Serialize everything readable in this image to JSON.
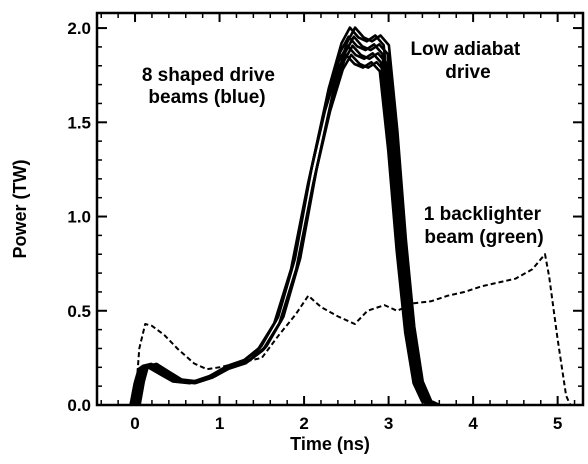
{
  "chart_data": {
    "type": "line",
    "title": "",
    "xlabel": "Time (ns)",
    "ylabel": "Power (TW)",
    "xlim": [
      -0.45,
      5.3
    ],
    "ylim": [
      0.0,
      2.08
    ],
    "grid": false,
    "x_ticks": [
      0,
      1,
      2,
      3,
      4,
      5
    ],
    "x_tick_labels": [
      "0",
      "1",
      "2",
      "3",
      "4",
      "5"
    ],
    "y_ticks": [
      0.0,
      0.5,
      1.0,
      1.5,
      2.0
    ],
    "y_tick_labels": [
      "0.0",
      "0.5",
      "1.0",
      "1.5",
      "2.0"
    ],
    "annotations": [
      {
        "id": "drive",
        "lines": [
          "8 shaped drive",
          "beams (blue)"
        ]
      },
      {
        "id": "adiabat",
        "lines": [
          "Low adiabat",
          "drive"
        ]
      },
      {
        "id": "backlighter",
        "lines": [
          "1 backlighter",
          "beam (green)"
        ]
      }
    ],
    "series": [
      {
        "role": "drive-beams",
        "style": "solid",
        "color": "#000000",
        "count": 8,
        "x": [
          0.0,
          0.05,
          0.1,
          0.2,
          0.35,
          0.5,
          0.7,
          0.9,
          1.1,
          1.3,
          1.5,
          1.7,
          1.9,
          2.1,
          2.3,
          2.45,
          2.55,
          2.65,
          2.75,
          2.85,
          2.95,
          3.05,
          3.15,
          3.25,
          3.35,
          3.45,
          3.55
        ],
        "y": [
          0.0,
          0.12,
          0.2,
          0.21,
          0.17,
          0.13,
          0.12,
          0.15,
          0.2,
          0.23,
          0.3,
          0.45,
          0.75,
          1.22,
          1.62,
          1.85,
          1.93,
          1.88,
          1.86,
          1.89,
          1.84,
          1.4,
          0.85,
          0.4,
          0.12,
          0.02,
          0.0
        ]
      },
      {
        "role": "backlighter-beam",
        "style": "dashed",
        "color": "#000000",
        "x": [
          0.0,
          0.05,
          0.12,
          0.2,
          0.35,
          0.5,
          0.7,
          0.85,
          1.0,
          1.2,
          1.5,
          1.7,
          1.9,
          2.05,
          2.2,
          2.4,
          2.6,
          2.75,
          2.95,
          3.1,
          3.3,
          3.5,
          3.7,
          3.9,
          4.1,
          4.3,
          4.5,
          4.7,
          4.85,
          4.9,
          5.0,
          5.1,
          5.15
        ],
        "y": [
          0.0,
          0.3,
          0.43,
          0.42,
          0.37,
          0.3,
          0.22,
          0.19,
          0.2,
          0.22,
          0.25,
          0.37,
          0.48,
          0.58,
          0.52,
          0.47,
          0.43,
          0.5,
          0.53,
          0.5,
          0.54,
          0.55,
          0.58,
          0.6,
          0.63,
          0.65,
          0.67,
          0.72,
          0.8,
          0.68,
          0.35,
          0.05,
          0.0
        ]
      }
    ]
  }
}
